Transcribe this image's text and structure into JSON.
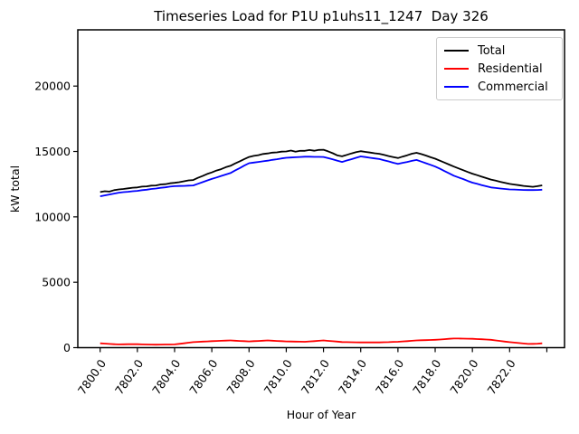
{
  "chart_data": {
    "type": "line",
    "title": "Timeseries Load for P1U p1uhs11_1247  Day 326",
    "xlabel": "Hour of Year",
    "ylabel": "kW total",
    "xlim": [
      7798.8,
      7824.95
    ],
    "ylim": [
      0,
      24300
    ],
    "grid": false,
    "yticks": {
      "values": [
        0,
        5000,
        10000,
        15000,
        20000
      ],
      "labels": [
        "0",
        "5000",
        "10000",
        "15000",
        "20000"
      ]
    },
    "xticks": {
      "values": [
        7800,
        7802,
        7804,
        7806,
        7808,
        7810,
        7812,
        7814,
        7816,
        7818,
        7820,
        7822,
        7824
      ],
      "labels": [
        "7800.0",
        "7802.0",
        "7804.0",
        "7806.0",
        "7808.0",
        "7810.0",
        "7812.0",
        "7814.0",
        "7816.0",
        "7818.0",
        "7820.0",
        "7822.0",
        ""
      ]
    },
    "x_start": 7800.0,
    "x_step": 0.25,
    "legend_position": "upper right",
    "series": [
      {
        "name": "Total",
        "color": "#000000",
        "values": [
          11900,
          11960,
          11930,
          12040,
          12100,
          12130,
          12180,
          12230,
          12250,
          12310,
          12330,
          12390,
          12400,
          12480,
          12500,
          12570,
          12600,
          12650,
          12720,
          12790,
          12820,
          12980,
          13120,
          13280,
          13400,
          13540,
          13650,
          13800,
          13900,
          14080,
          14250,
          14420,
          14580,
          14660,
          14720,
          14810,
          14850,
          14910,
          14930,
          14990,
          15000,
          15070,
          14990,
          15050,
          15050,
          15110,
          15060,
          15120,
          15130,
          15010,
          14860,
          14700,
          14630,
          14740,
          14850,
          14950,
          15020,
          14970,
          14920,
          14860,
          14820,
          14740,
          14650,
          14570,
          14500,
          14610,
          14710,
          14830,
          14900,
          14800,
          14690,
          14560,
          14450,
          14300,
          14150,
          14000,
          13850,
          13710,
          13570,
          13430,
          13300,
          13190,
          13070,
          12960,
          12850,
          12770,
          12680,
          12600,
          12520,
          12470,
          12420,
          12370,
          12330,
          12300,
          12350,
          12410
        ]
      },
      {
        "name": "Residential",
        "color": "#ff0000",
        "values": [
          330,
          310,
          280,
          260,
          250,
          255,
          260,
          265,
          260,
          250,
          245,
          235,
          230,
          235,
          240,
          245,
          250,
          290,
          330,
          380,
          420,
          440,
          460,
          480,
          500,
          515,
          525,
          540,
          550,
          530,
          515,
          495,
          480,
          500,
          515,
          535,
          550,
          530,
          515,
          495,
          480,
          470,
          465,
          455,
          450,
          475,
          500,
          525,
          550,
          520,
          490,
          460,
          430,
          425,
          415,
          405,
          400,
          400,
          400,
          400,
          400,
          415,
          425,
          440,
          450,
          475,
          500,
          525,
          550,
          565,
          575,
          590,
          600,
          625,
          650,
          675,
          700,
          695,
          690,
          685,
          680,
          660,
          640,
          620,
          600,
          555,
          510,
          465,
          420,
          385,
          350,
          315,
          280,
          290,
          305,
          330
        ]
      },
      {
        "name": "Commercial",
        "color": "#0000ff",
        "values": [
          11570,
          11640,
          11710,
          11780,
          11850,
          11890,
          11920,
          11960,
          11990,
          12040,
          12080,
          12130,
          12170,
          12220,
          12260,
          12310,
          12350,
          12360,
          12370,
          12390,
          12400,
          12530,
          12650,
          12780,
          12900,
          13010,
          13130,
          13240,
          13350,
          13540,
          13730,
          13920,
          14100,
          14150,
          14200,
          14250,
          14300,
          14360,
          14410,
          14470,
          14520,
          14540,
          14560,
          14580,
          14600,
          14600,
          14590,
          14590,
          14580,
          14490,
          14390,
          14290,
          14200,
          14310,
          14410,
          14520,
          14620,
          14570,
          14520,
          14470,
          14420,
          14330,
          14240,
          14140,
          14050,
          14130,
          14200,
          14280,
          14350,
          14230,
          14100,
          13980,
          13850,
          13680,
          13500,
          13330,
          13150,
          13020,
          12890,
          12750,
          12620,
          12530,
          12430,
          12340,
          12250,
          12210,
          12170,
          12130,
          12100,
          12090,
          12070,
          12060,
          12050,
          12050,
          12060,
          12080
        ]
      }
    ]
  }
}
